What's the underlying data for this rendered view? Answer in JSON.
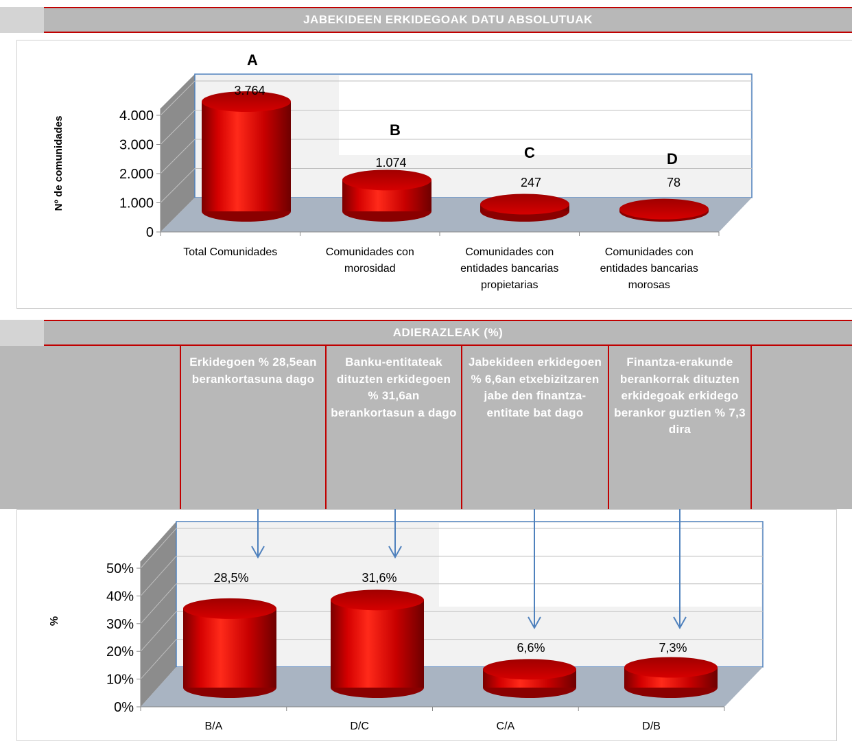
{
  "header1": {
    "title": "JABEKIDEEN ERKIDEGOAK DATU ABSOLUTUAK"
  },
  "header2": {
    "title": "ADIERAZLEAK (%)"
  },
  "indicators": [
    {
      "text": "Erkidegoen % 28,5ean berankortasuna dago"
    },
    {
      "text": "Banku-entitateak dituzten erkidegoen % 31,6an berankortasun a dago"
    },
    {
      "text": "Jabekideen erkidegoen % 6,6an etxebizitzaren jabe den finantza-entitate bat dago"
    },
    {
      "text": "Finantza-erakunde berankorrak dituzten erkidegoak erkidego berankor guztien % 7,3 dira"
    }
  ],
  "chart_data": [
    {
      "type": "bar",
      "title": "",
      "ylabel": "Nº de comunidades",
      "xlabel": "",
      "categories": [
        "Total Comunidades",
        "Comunidades con morosidad",
        "Comunidades con entidades bancarias propietarias",
        "Comunidades con entidades bancarias morosas"
      ],
      "category_lines": [
        [
          "Total Comunidades"
        ],
        [
          "Comunidades con",
          "morosidad"
        ],
        [
          "Comunidades con",
          "entidades bancarias",
          "propietarias"
        ],
        [
          "Comunidades con",
          "entidades bancarias",
          "morosas"
        ]
      ],
      "letters": [
        "A",
        "B",
        "C",
        "D"
      ],
      "values": [
        3764,
        1074,
        247,
        78
      ],
      "value_labels": [
        "3.764",
        "1.074",
        "247",
        "78"
      ],
      "yticks": [
        "0",
        "1.000",
        "2.000",
        "3.000",
        "4.000"
      ],
      "ylim": [
        0,
        4000
      ],
      "grid": true,
      "color": "#c00000"
    },
    {
      "type": "bar",
      "title": "",
      "ylabel": "%",
      "xlabel": "",
      "categories": [
        "B/A",
        "D/C",
        "C/A",
        "D/B"
      ],
      "values": [
        28.5,
        31.6,
        6.6,
        7.3
      ],
      "value_labels": [
        "28,5%",
        "31,6%",
        "6,6%",
        "7,3%"
      ],
      "yticks": [
        "0%",
        "10%",
        "20%",
        "30%",
        "40%",
        "50%"
      ],
      "ylim": [
        0,
        50
      ],
      "grid": true,
      "color": "#c00000"
    }
  ]
}
